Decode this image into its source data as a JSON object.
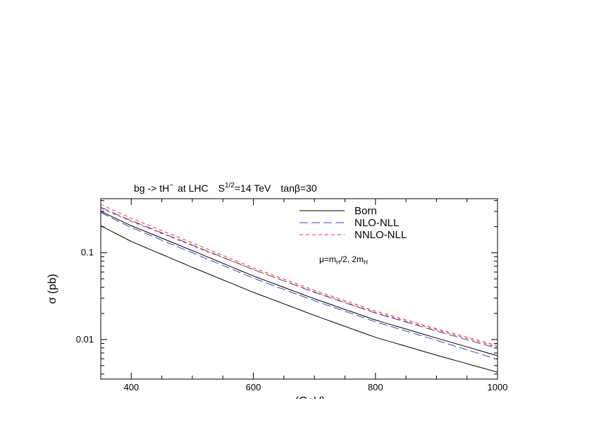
{
  "chart_data": {
    "type": "line",
    "title": "bg -> tH⁻ at LHC  S^1/2=14 TeV  tanβ=30",
    "title_parts": {
      "process": "bg -> tH",
      "charge": "−",
      "collider": "at LHC",
      "energy_base": "S",
      "energy_exp": "1/2",
      "energy_value": "=14 TeV",
      "tanb": "tanβ=30"
    },
    "ylabel": "σ (pb)",
    "xlabel": "(GeV)",
    "annotation": {
      "mu": "μ=m",
      "sub1": "H",
      "mid": "/2, 2m",
      "sub2": "H"
    },
    "x_scale": "linear",
    "y_scale": "log",
    "xlim": [
      350,
      1000
    ],
    "ylim": [
      0.0035,
      0.42
    ],
    "x_ticks": [
      400,
      600,
      800,
      1000
    ],
    "x_tick_labels": [
      "400",
      "600",
      "800",
      "1000"
    ],
    "y_ticks": [
      0.01,
      0.1
    ],
    "y_tick_labels": [
      "0.01",
      "0.1"
    ],
    "grid": false,
    "legend_position": "top-right",
    "x": [
      350,
      400,
      500,
      600,
      700,
      800,
      900,
      1000
    ],
    "series": [
      {
        "name": "Born",
        "style": "solid",
        "color": "#000000",
        "values": [
          0.205,
          0.135,
          0.068,
          0.035,
          0.019,
          0.0106,
          0.0066,
          0.0042
        ]
      },
      {
        "name": "Born",
        "style": "solid",
        "color": "#000000",
        "legend": false,
        "values": [
          0.3,
          0.205,
          0.106,
          0.054,
          0.0295,
          0.0168,
          0.0104,
          0.0065
        ]
      },
      {
        "name": "NLO-NLL",
        "style": "long-dash",
        "color": "#3344cc",
        "values": [
          0.29,
          0.195,
          0.1,
          0.051,
          0.028,
          0.016,
          0.0098,
          0.0059
        ]
      },
      {
        "name": "NLO-NLL",
        "style": "long-dash",
        "color": "#3344cc",
        "legend": false,
        "values": [
          0.335,
          0.235,
          0.123,
          0.064,
          0.035,
          0.0202,
          0.0125,
          0.0079
        ]
      },
      {
        "name": "NNLO-NLL",
        "style": "short-dash",
        "color": "#ee3333",
        "values": [
          0.325,
          0.23,
          0.121,
          0.064,
          0.0355,
          0.0205,
          0.0129,
          0.0082
        ]
      },
      {
        "name": "NNLO-NLL",
        "style": "short-dash",
        "color": "#ee3333",
        "legend": false,
        "values": [
          0.36,
          0.25,
          0.13,
          0.067,
          0.037,
          0.0213,
          0.0133,
          0.0085
        ]
      }
    ]
  }
}
